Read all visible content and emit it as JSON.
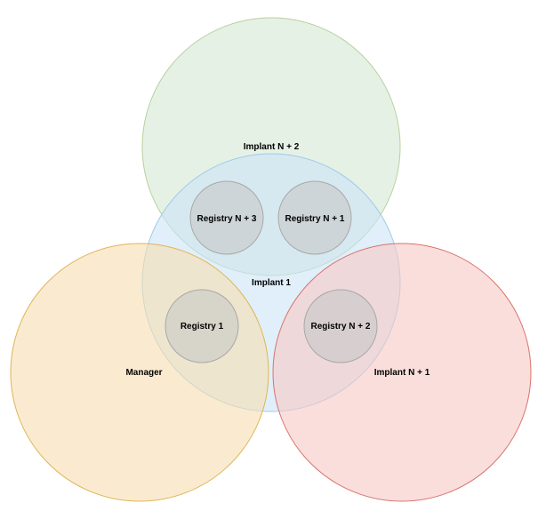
{
  "circles": {
    "implant_n2": {
      "label": "Implant N + 2",
      "fill": "#d5e8d4",
      "stroke": "#b7d19e"
    },
    "implant_1": {
      "label": "Implant 1",
      "fill": "#cce5f7",
      "stroke": "#9fcbe8"
    },
    "manager": {
      "label": "Manager",
      "fill": "#f6deb0",
      "stroke": "#e0b455"
    },
    "implant_n1": {
      "label": "Implant N + 1",
      "fill": "#f6c8c4",
      "stroke": "#d9736b"
    }
  },
  "registries": {
    "reg_n3": {
      "label": "Registry N + 3"
    },
    "reg_n1": {
      "label": "Registry N + 1"
    },
    "reg_1": {
      "label": "Registry 1"
    },
    "reg_n2": {
      "label": "Registry N + 2"
    },
    "fill": "#c8c8c8",
    "stroke": "#a8a8a8"
  }
}
